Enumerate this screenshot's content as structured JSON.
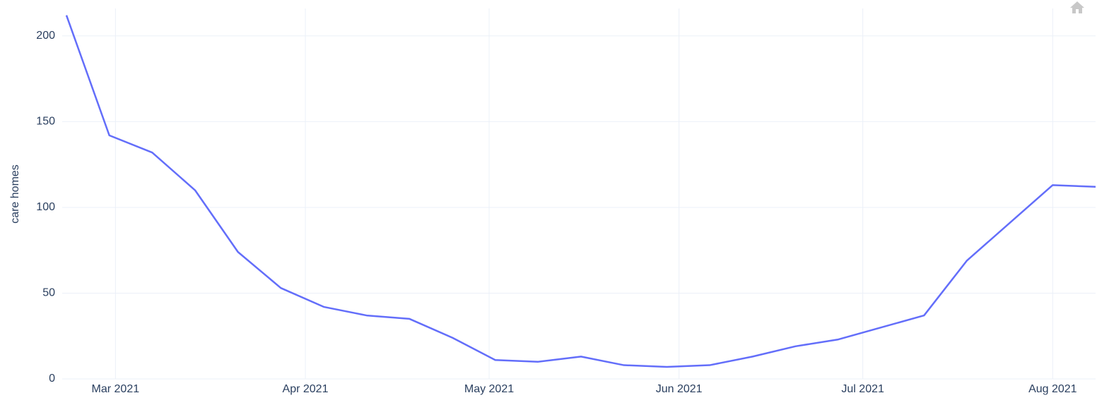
{
  "chart_data": {
    "type": "line",
    "y_label": "care homes",
    "x": [
      "2021-02-21",
      "2021-02-28",
      "2021-03-07",
      "2021-03-14",
      "2021-03-21",
      "2021-03-28",
      "2021-04-04",
      "2021-04-11",
      "2021-04-18",
      "2021-04-25",
      "2021-05-02",
      "2021-05-09",
      "2021-05-16",
      "2021-05-23",
      "2021-05-30",
      "2021-06-06",
      "2021-06-13",
      "2021-06-20",
      "2021-06-27",
      "2021-07-04",
      "2021-07-11",
      "2021-07-18",
      "2021-07-25",
      "2021-08-01",
      "2021-08-08"
    ],
    "series": [
      {
        "color": "#636efa",
        "values": [
          212,
          142,
          132,
          110,
          74,
          53,
          42,
          37,
          35,
          24,
          11,
          10,
          13,
          8,
          7,
          8,
          13,
          19,
          23,
          30,
          37,
          69,
          91,
          113,
          112
        ]
      }
    ],
    "xlim": [
      "2021-02-21",
      "2021-08-08"
    ],
    "xticks": [
      {
        "value": "2021-03-01",
        "label": "Mar 2021"
      },
      {
        "value": "2021-04-01",
        "label": "Apr 2021"
      },
      {
        "value": "2021-05-01",
        "label": "May 2021"
      },
      {
        "value": "2021-06-01",
        "label": "Jun 2021"
      },
      {
        "value": "2021-07-01",
        "label": "Jul 2021"
      },
      {
        "value": "2021-08-01",
        "label": "Aug 2021"
      }
    ],
    "ylim": [
      0,
      216
    ],
    "yticks": [
      0,
      50,
      100,
      150,
      200
    ],
    "grid": true
  }
}
